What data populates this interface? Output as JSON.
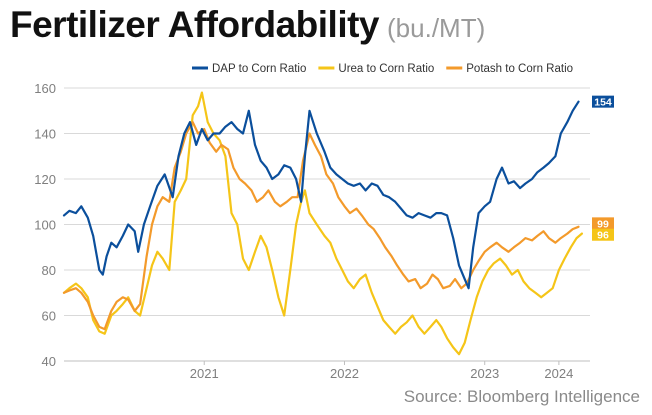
{
  "title": "Fertilizer Affordability",
  "subtitle": "(bu./MT)",
  "source": "Source: Bloomberg Intelligence",
  "colors": {
    "dap": "#0b4f9c",
    "urea": "#f5c518",
    "potash": "#f39a2b",
    "grid": "#d9d9d9",
    "axis_text": "#7f7f7f"
  },
  "chart_data": {
    "type": "line",
    "x_axis": {
      "type": "date",
      "range": [
        "2020-07-01",
        "2024-03-31"
      ],
      "tick_labels": [
        "2021",
        "2022",
        "2023",
        "2024"
      ]
    },
    "ylim": [
      40,
      160
    ],
    "y_ticks": [
      40,
      60,
      80,
      100,
      120,
      140,
      160
    ],
    "grid": "horizontal",
    "legend": "top-right",
    "end_labels": {
      "dap": "154",
      "potash": "99",
      "urea": "96"
    },
    "series": [
      {
        "key": "dap",
        "name": "DAP to Corn Ratio",
        "points": [
          [
            "2020-07-01",
            104
          ],
          [
            "2020-07-15",
            106
          ],
          [
            "2020-08-01",
            105
          ],
          [
            "2020-08-15",
            108
          ],
          [
            "2020-09-01",
            103
          ],
          [
            "2020-09-15",
            95
          ],
          [
            "2020-10-01",
            80
          ],
          [
            "2020-10-10",
            78
          ],
          [
            "2020-10-20",
            86
          ],
          [
            "2020-11-01",
            92
          ],
          [
            "2020-11-15",
            90
          ],
          [
            "2020-12-01",
            95
          ],
          [
            "2020-12-15",
            100
          ],
          [
            "2021-01-01",
            97
          ],
          [
            "2021-01-10",
            88
          ],
          [
            "2021-01-25",
            100
          ],
          [
            "2021-02-10",
            108
          ],
          [
            "2021-03-01",
            117
          ],
          [
            "2021-03-20",
            122
          ],
          [
            "2021-04-10",
            112
          ],
          [
            "2021-04-25",
            130
          ],
          [
            "2021-05-10",
            140
          ],
          [
            "2021-05-25",
            145
          ],
          [
            "2021-06-10",
            135
          ],
          [
            "2021-06-25",
            142
          ],
          [
            "2021-07-10",
            137
          ],
          [
            "2021-07-25",
            140
          ],
          [
            "2021-08-10",
            140
          ],
          [
            "2021-08-25",
            143
          ],
          [
            "2021-09-10",
            145
          ],
          [
            "2021-09-25",
            142
          ],
          [
            "2021-10-10",
            140
          ],
          [
            "2021-10-25",
            150
          ],
          [
            "2021-11-10",
            135
          ],
          [
            "2021-11-25",
            128
          ],
          [
            "2021-12-10",
            125
          ],
          [
            "2021-12-25",
            120
          ],
          [
            "2022-01-10",
            122
          ],
          [
            "2022-01-25",
            126
          ],
          [
            "2022-02-10",
            125
          ],
          [
            "2022-02-25",
            120
          ],
          [
            "2022-03-10",
            110
          ],
          [
            "2022-03-20",
            130
          ],
          [
            "2022-04-01",
            150
          ],
          [
            "2022-04-20",
            140
          ],
          [
            "2022-05-10",
            132
          ],
          [
            "2022-05-25",
            125
          ],
          [
            "2022-06-10",
            122
          ],
          [
            "2022-06-25",
            120
          ],
          [
            "2022-07-10",
            118
          ],
          [
            "2022-07-25",
            117
          ],
          [
            "2022-08-10",
            118
          ],
          [
            "2022-08-25",
            115
          ],
          [
            "2022-09-10",
            118
          ],
          [
            "2022-09-25",
            117
          ],
          [
            "2022-10-10",
            113
          ],
          [
            "2022-10-25",
            112
          ],
          [
            "2022-11-10",
            110
          ],
          [
            "2022-11-25",
            107
          ],
          [
            "2022-12-10",
            104
          ],
          [
            "2022-12-25",
            103
          ],
          [
            "2023-01-10",
            105
          ],
          [
            "2023-01-25",
            104
          ],
          [
            "2023-02-10",
            103
          ],
          [
            "2023-02-25",
            105
          ],
          [
            "2023-03-10",
            105
          ],
          [
            "2023-03-25",
            104
          ],
          [
            "2023-04-10",
            94
          ],
          [
            "2023-04-25",
            82
          ],
          [
            "2023-05-10",
            76
          ],
          [
            "2023-05-20",
            72
          ],
          [
            "2023-06-01",
            90
          ],
          [
            "2023-06-15",
            105
          ],
          [
            "2023-07-01",
            108
          ],
          [
            "2023-07-15",
            110
          ],
          [
            "2023-08-01",
            120
          ],
          [
            "2023-08-15",
            125
          ],
          [
            "2023-09-01",
            118
          ],
          [
            "2023-09-15",
            119
          ],
          [
            "2023-10-01",
            116
          ],
          [
            "2023-10-15",
            118
          ],
          [
            "2023-11-01",
            120
          ],
          [
            "2023-11-15",
            123
          ],
          [
            "2023-12-01",
            125
          ],
          [
            "2023-12-15",
            127
          ],
          [
            "2024-01-01",
            130
          ],
          [
            "2024-01-15",
            140
          ],
          [
            "2024-02-01",
            145
          ],
          [
            "2024-02-15",
            150
          ],
          [
            "2024-03-01",
            154
          ]
        ]
      },
      {
        "key": "urea",
        "name": "Urea to Corn Ratio",
        "points": [
          [
            "2020-07-01",
            70
          ],
          [
            "2020-07-15",
            72
          ],
          [
            "2020-08-01",
            74
          ],
          [
            "2020-08-15",
            72
          ],
          [
            "2020-09-01",
            68
          ],
          [
            "2020-09-15",
            58
          ],
          [
            "2020-10-01",
            53
          ],
          [
            "2020-10-15",
            52
          ],
          [
            "2020-11-01",
            60
          ],
          [
            "2020-11-15",
            62
          ],
          [
            "2020-12-01",
            65
          ],
          [
            "2020-12-15",
            68
          ],
          [
            "2021-01-01",
            62
          ],
          [
            "2021-01-15",
            60
          ],
          [
            "2021-02-01",
            72
          ],
          [
            "2021-02-15",
            82
          ],
          [
            "2021-03-01",
            88
          ],
          [
            "2021-03-15",
            85
          ],
          [
            "2021-04-01",
            80
          ],
          [
            "2021-04-15",
            110
          ],
          [
            "2021-05-01",
            115
          ],
          [
            "2021-05-15",
            120
          ],
          [
            "2021-06-01",
            148
          ],
          [
            "2021-06-15",
            152
          ],
          [
            "2021-06-25",
            158
          ],
          [
            "2021-07-10",
            145
          ],
          [
            "2021-07-25",
            140
          ],
          [
            "2021-08-10",
            137
          ],
          [
            "2021-08-25",
            130
          ],
          [
            "2021-09-10",
            105
          ],
          [
            "2021-09-25",
            100
          ],
          [
            "2021-10-10",
            85
          ],
          [
            "2021-10-25",
            80
          ],
          [
            "2021-11-10",
            88
          ],
          [
            "2021-11-25",
            95
          ],
          [
            "2021-12-10",
            90
          ],
          [
            "2021-12-25",
            80
          ],
          [
            "2022-01-10",
            68
          ],
          [
            "2022-01-25",
            60
          ],
          [
            "2022-02-10",
            80
          ],
          [
            "2022-02-25",
            100
          ],
          [
            "2022-03-10",
            110
          ],
          [
            "2022-03-20",
            115
          ],
          [
            "2022-04-01",
            105
          ],
          [
            "2022-04-20",
            100
          ],
          [
            "2022-05-10",
            95
          ],
          [
            "2022-05-25",
            92
          ],
          [
            "2022-06-10",
            85
          ],
          [
            "2022-06-25",
            80
          ],
          [
            "2022-07-10",
            75
          ],
          [
            "2022-07-25",
            72
          ],
          [
            "2022-08-10",
            76
          ],
          [
            "2022-08-25",
            78
          ],
          [
            "2022-09-10",
            70
          ],
          [
            "2022-09-25",
            64
          ],
          [
            "2022-10-10",
            58
          ],
          [
            "2022-10-25",
            55
          ],
          [
            "2022-11-10",
            52
          ],
          [
            "2022-11-25",
            55
          ],
          [
            "2022-12-10",
            57
          ],
          [
            "2022-12-25",
            60
          ],
          [
            "2023-01-10",
            55
          ],
          [
            "2023-01-25",
            52
          ],
          [
            "2023-02-10",
            55
          ],
          [
            "2023-02-25",
            58
          ],
          [
            "2023-03-10",
            55
          ],
          [
            "2023-03-25",
            50
          ],
          [
            "2023-04-10",
            46
          ],
          [
            "2023-04-25",
            43
          ],
          [
            "2023-05-10",
            48
          ],
          [
            "2023-05-25",
            58
          ],
          [
            "2023-06-10",
            68
          ],
          [
            "2023-06-25",
            75
          ],
          [
            "2023-07-10",
            80
          ],
          [
            "2023-07-25",
            83
          ],
          [
            "2023-08-10",
            85
          ],
          [
            "2023-08-25",
            82
          ],
          [
            "2023-09-10",
            78
          ],
          [
            "2023-09-25",
            80
          ],
          [
            "2023-10-10",
            75
          ],
          [
            "2023-10-25",
            72
          ],
          [
            "2023-11-10",
            70
          ],
          [
            "2023-11-25",
            68
          ],
          [
            "2023-12-10",
            70
          ],
          [
            "2023-12-25",
            72
          ],
          [
            "2024-01-10",
            80
          ],
          [
            "2024-01-25",
            85
          ],
          [
            "2024-02-10",
            90
          ],
          [
            "2024-02-25",
            94
          ],
          [
            "2024-03-10",
            96
          ]
        ]
      },
      {
        "key": "potash",
        "name": "Potash to Corn Ratio",
        "points": [
          [
            "2020-07-01",
            70
          ],
          [
            "2020-07-15",
            71
          ],
          [
            "2020-08-01",
            72
          ],
          [
            "2020-08-15",
            70
          ],
          [
            "2020-09-01",
            66
          ],
          [
            "2020-09-15",
            60
          ],
          [
            "2020-10-01",
            55
          ],
          [
            "2020-10-15",
            54
          ],
          [
            "2020-11-01",
            62
          ],
          [
            "2020-11-15",
            66
          ],
          [
            "2020-12-01",
            68
          ],
          [
            "2020-12-15",
            67
          ],
          [
            "2021-01-01",
            62
          ],
          [
            "2021-01-15",
            65
          ],
          [
            "2021-02-01",
            86
          ],
          [
            "2021-02-15",
            100
          ],
          [
            "2021-03-01",
            108
          ],
          [
            "2021-03-15",
            112
          ],
          [
            "2021-04-01",
            110
          ],
          [
            "2021-04-15",
            125
          ],
          [
            "2021-05-01",
            132
          ],
          [
            "2021-05-15",
            140
          ],
          [
            "2021-06-01",
            145
          ],
          [
            "2021-06-15",
            140
          ],
          [
            "2021-07-01",
            142
          ],
          [
            "2021-07-15",
            136
          ],
          [
            "2021-08-01",
            132
          ],
          [
            "2021-08-15",
            135
          ],
          [
            "2021-09-01",
            133
          ],
          [
            "2021-09-15",
            125
          ],
          [
            "2021-10-01",
            120
          ],
          [
            "2021-10-15",
            118
          ],
          [
            "2021-11-01",
            115
          ],
          [
            "2021-11-15",
            110
          ],
          [
            "2021-12-01",
            112
          ],
          [
            "2021-12-15",
            115
          ],
          [
            "2022-01-01",
            110
          ],
          [
            "2022-01-15",
            108
          ],
          [
            "2022-02-01",
            110
          ],
          [
            "2022-02-15",
            112
          ],
          [
            "2022-03-01",
            112
          ],
          [
            "2022-03-15",
            128
          ],
          [
            "2022-04-01",
            140
          ],
          [
            "2022-04-15",
            135
          ],
          [
            "2022-05-01",
            130
          ],
          [
            "2022-05-15",
            122
          ],
          [
            "2022-06-01",
            118
          ],
          [
            "2022-06-15",
            112
          ],
          [
            "2022-07-01",
            108
          ],
          [
            "2022-07-15",
            105
          ],
          [
            "2022-08-01",
            107
          ],
          [
            "2022-08-15",
            104
          ],
          [
            "2022-09-01",
            100
          ],
          [
            "2022-09-15",
            98
          ],
          [
            "2022-10-01",
            94
          ],
          [
            "2022-10-15",
            90
          ],
          [
            "2022-11-01",
            86
          ],
          [
            "2022-11-15",
            82
          ],
          [
            "2022-12-01",
            78
          ],
          [
            "2022-12-15",
            75
          ],
          [
            "2023-01-01",
            76
          ],
          [
            "2023-01-15",
            72
          ],
          [
            "2023-02-01",
            74
          ],
          [
            "2023-02-15",
            78
          ],
          [
            "2023-03-01",
            76
          ],
          [
            "2023-03-15",
            72
          ],
          [
            "2023-04-01",
            73
          ],
          [
            "2023-04-15",
            76
          ],
          [
            "2023-05-01",
            72
          ],
          [
            "2023-05-15",
            74
          ],
          [
            "2023-06-01",
            80
          ],
          [
            "2023-06-15",
            84
          ],
          [
            "2023-07-01",
            88
          ],
          [
            "2023-07-15",
            90
          ],
          [
            "2023-08-01",
            92
          ],
          [
            "2023-08-15",
            90
          ],
          [
            "2023-09-01",
            88
          ],
          [
            "2023-09-15",
            90
          ],
          [
            "2023-10-01",
            92
          ],
          [
            "2023-10-15",
            94
          ],
          [
            "2023-11-01",
            93
          ],
          [
            "2023-11-15",
            95
          ],
          [
            "2023-12-01",
            97
          ],
          [
            "2023-12-15",
            94
          ],
          [
            "2024-01-01",
            92
          ],
          [
            "2024-01-15",
            94
          ],
          [
            "2024-02-01",
            96
          ],
          [
            "2024-02-15",
            98
          ],
          [
            "2024-03-01",
            99
          ]
        ]
      }
    ]
  }
}
